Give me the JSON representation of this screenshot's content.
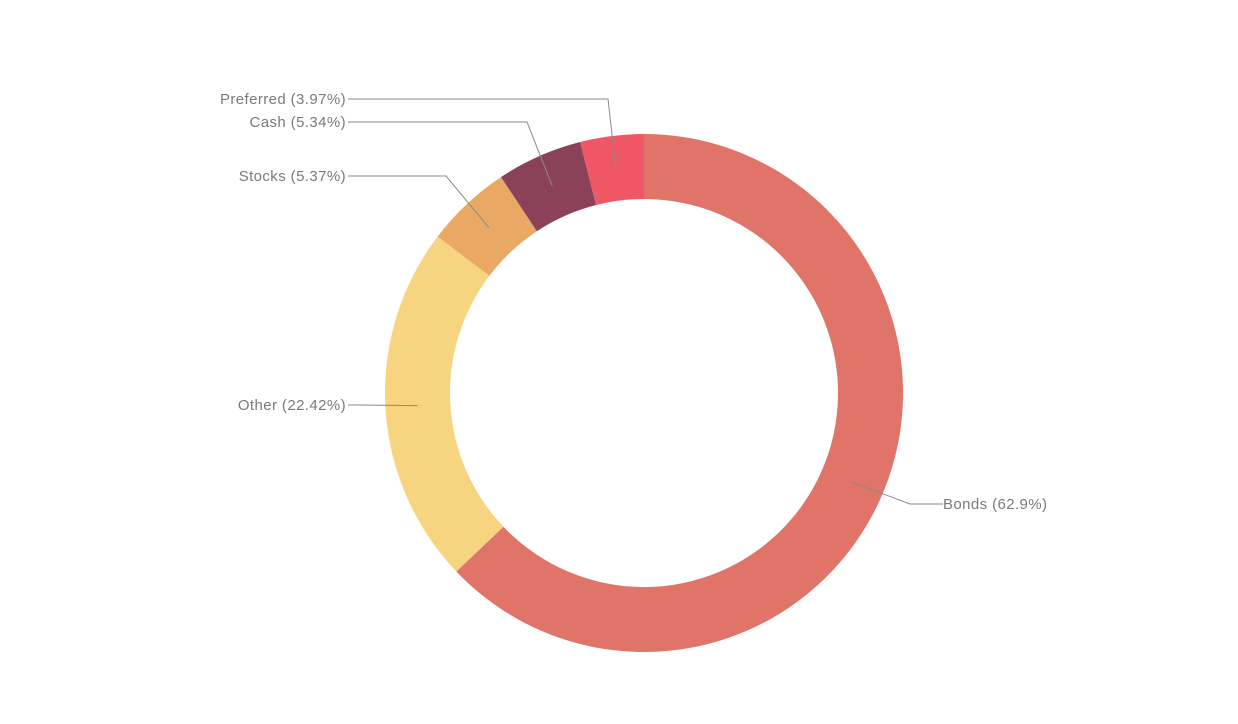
{
  "chart_data": {
    "type": "pie",
    "variant": "donut",
    "slices": [
      {
        "label": "Bonds (62.9%)",
        "name": "Bonds",
        "value": 62.9,
        "color": "#E07468"
      },
      {
        "label": "Other (22.42%)",
        "name": "Other",
        "value": 22.42,
        "color": "#F7D580"
      },
      {
        "label": "Stocks (5.37%)",
        "name": "Stocks",
        "value": 5.37,
        "color": "#E9A964"
      },
      {
        "label": "Cash (5.34%)",
        "name": "Cash",
        "value": 5.34,
        "color": "#8B4258"
      },
      {
        "label": "Preferred (3.97%)",
        "name": "Preferred",
        "value": 3.97,
        "color": "#EF5766"
      }
    ],
    "legend": "none",
    "labels": "outside-with-leader-lines"
  }
}
